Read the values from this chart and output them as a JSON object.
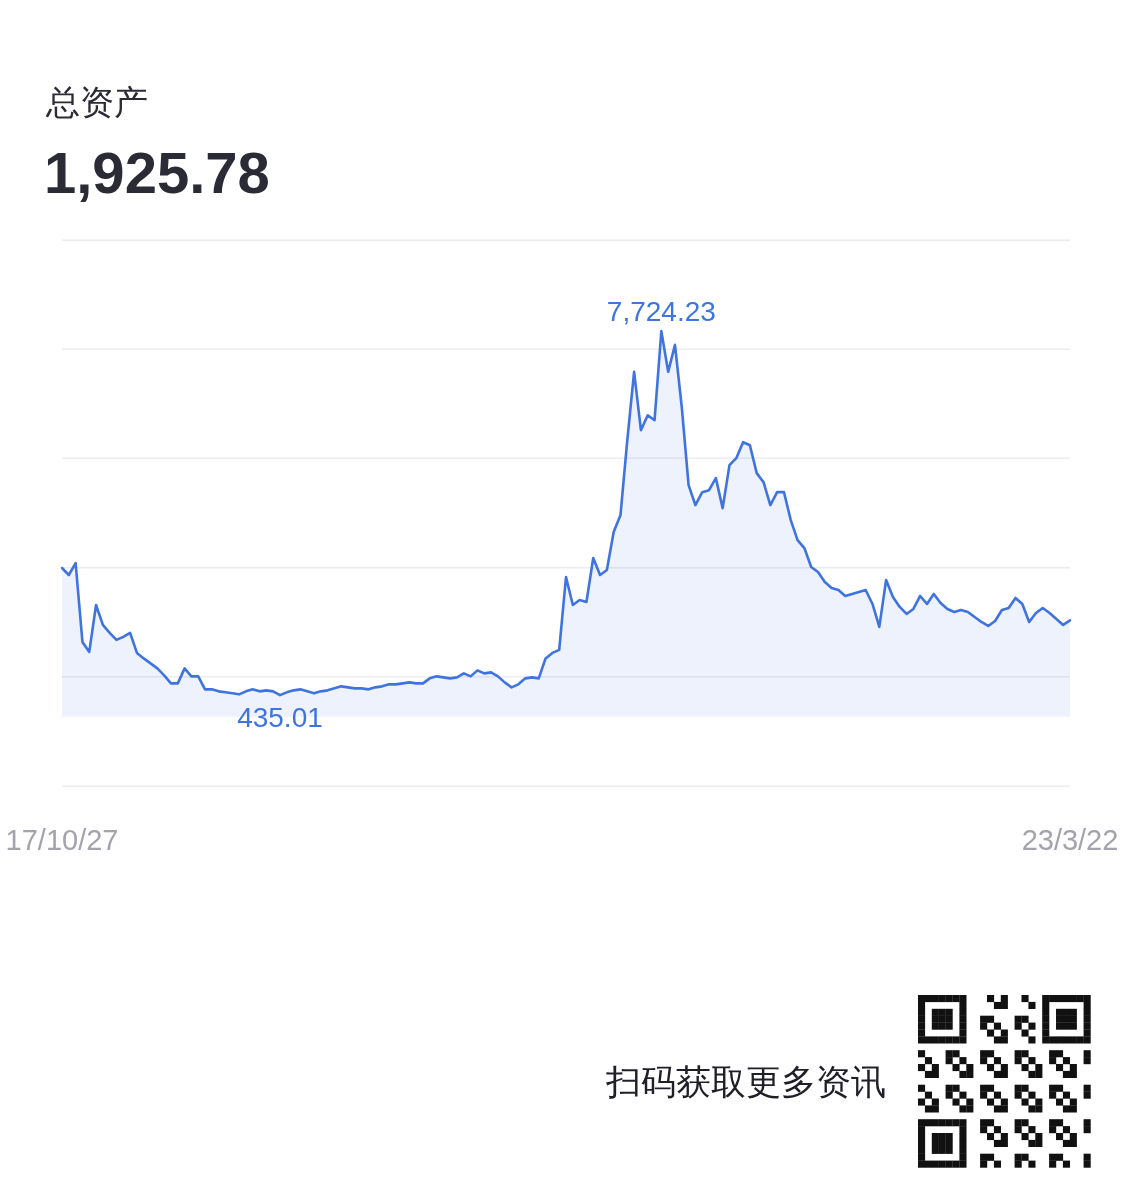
{
  "chart_data": {
    "type": "area",
    "title": "总资产",
    "subtitle": "1,925.78",
    "categories": [
      "17/10/27",
      null,
      null,
      null,
      null,
      null,
      null,
      null,
      null,
      null,
      null,
      null,
      null,
      null,
      null,
      null,
      null,
      null,
      null,
      null,
      null,
      null,
      null,
      null,
      null,
      null,
      null,
      null,
      null,
      null,
      null,
      null,
      null,
      null,
      null,
      null,
      null,
      null,
      null,
      null,
      null,
      null,
      null,
      null,
      null,
      null,
      null,
      null,
      null,
      null,
      null,
      null,
      null,
      null,
      null,
      null,
      null,
      null,
      null,
      null,
      null,
      null,
      null,
      null,
      null,
      null,
      null,
      null,
      null,
      null,
      null,
      null,
      null,
      null,
      null,
      null,
      null,
      null,
      null,
      null,
      null,
      null,
      null,
      null,
      null,
      null,
      null,
      null,
      null,
      null,
      null,
      null,
      null,
      null,
      null,
      null,
      null,
      null,
      null,
      null,
      null,
      null,
      null,
      null,
      null,
      null,
      null,
      null,
      null,
      null,
      null,
      null,
      null,
      null,
      null,
      null,
      null,
      null,
      null,
      null,
      null,
      null,
      null,
      null,
      null,
      null,
      null,
      null,
      null,
      null,
      null,
      null,
      null,
      null,
      null,
      null,
      null,
      null,
      null,
      null,
      null,
      null,
      null,
      null,
      null,
      null,
      null,
      null,
      "23/3/22"
    ],
    "values": [
      2980,
      2840,
      3080,
      1500,
      1300,
      2240,
      1840,
      1680,
      1540,
      1600,
      1680,
      1280,
      1170,
      1070,
      970,
      830,
      670,
      670,
      970,
      810,
      810,
      550,
      550,
      510,
      490,
      470,
      450,
      510,
      550,
      510,
      530,
      510,
      435.01,
      490,
      530,
      550,
      510,
      470,
      510,
      530,
      570,
      610,
      590,
      570,
      570,
      550,
      590,
      610,
      650,
      650,
      670,
      690,
      670,
      670,
      770,
      810,
      790,
      770,
      790,
      870,
      810,
      930,
      870,
      890,
      810,
      690,
      590,
      650,
      770,
      790,
      770,
      1170,
      1280,
      1340,
      2800,
      2240,
      2340,
      2300,
      3180,
      2840,
      2940,
      3700,
      4040,
      5540,
      6910,
      5740,
      6040,
      5940,
      7724.23,
      6910,
      7450,
      6200,
      4640,
      4240,
      4500,
      4540,
      4780,
      4180,
      5040,
      5180,
      5500,
      5440,
      4880,
      4700,
      4240,
      4500,
      4500,
      3940,
      3540,
      3380,
      3000,
      2900,
      2700,
      2580,
      2540,
      2420,
      2460,
      2500,
      2540,
      2260,
      1800,
      2740,
      2400,
      2200,
      2060,
      2160,
      2420,
      2260,
      2460,
      2280,
      2160,
      2100,
      2140,
      2100,
      2000,
      1900,
      1820,
      1920,
      2140,
      2180,
      2380,
      2260,
      1900,
      2080,
      2180,
      2080,
      1960,
      1840,
      1930
    ],
    "value_labels": [
      null,
      null,
      null,
      null,
      null,
      null,
      null,
      null,
      null,
      null,
      null,
      null,
      null,
      null,
      null,
      null,
      null,
      null,
      null,
      null,
      null,
      null,
      null,
      null,
      null,
      null,
      null,
      null,
      null,
      null,
      null,
      null,
      "435.01",
      null,
      null,
      null,
      null,
      null,
      null,
      null,
      null,
      null,
      null,
      null,
      null,
      null,
      null,
      null,
      null,
      null,
      null,
      null,
      null,
      null,
      null,
      null,
      null,
      null,
      null,
      null,
      null,
      null,
      null,
      null,
      null,
      null,
      null,
      null,
      null,
      null,
      null,
      null,
      null,
      null,
      null,
      null,
      null,
      null,
      null,
      null,
      null,
      null,
      null,
      null,
      null,
      null,
      null,
      null,
      "7,724.23",
      null,
      null,
      null,
      null,
      null,
      null,
      null,
      null,
      null,
      null,
      null,
      null,
      null,
      null,
      null,
      null,
      null,
      null,
      null,
      null,
      null,
      null,
      null,
      null,
      null,
      null,
      null,
      null,
      null,
      null,
      null,
      null,
      null,
      null,
      null,
      null,
      null,
      null,
      null,
      null,
      null,
      null,
      null,
      null,
      null,
      null,
      null,
      null,
      null,
      null,
      null,
      null,
      null,
      null,
      null,
      null,
      null,
      null,
      null,
      null
    ],
    "color": "#3f74e0",
    "ylim": [
      -1390,
      9550
    ],
    "yticks": [
      {
        "value": -1390,
        "label": null
      },
      {
        "value": 798,
        "label": null
      },
      {
        "value": 2986,
        "label": null
      },
      {
        "value": 5174,
        "label": null
      },
      {
        "value": 7362,
        "label": null
      },
      {
        "value": 9550,
        "label": null
      }
    ],
    "grid": "y",
    "tick_labels": "x",
    "annotations": [
      "扫码获取更多资讯"
    ]
  }
}
